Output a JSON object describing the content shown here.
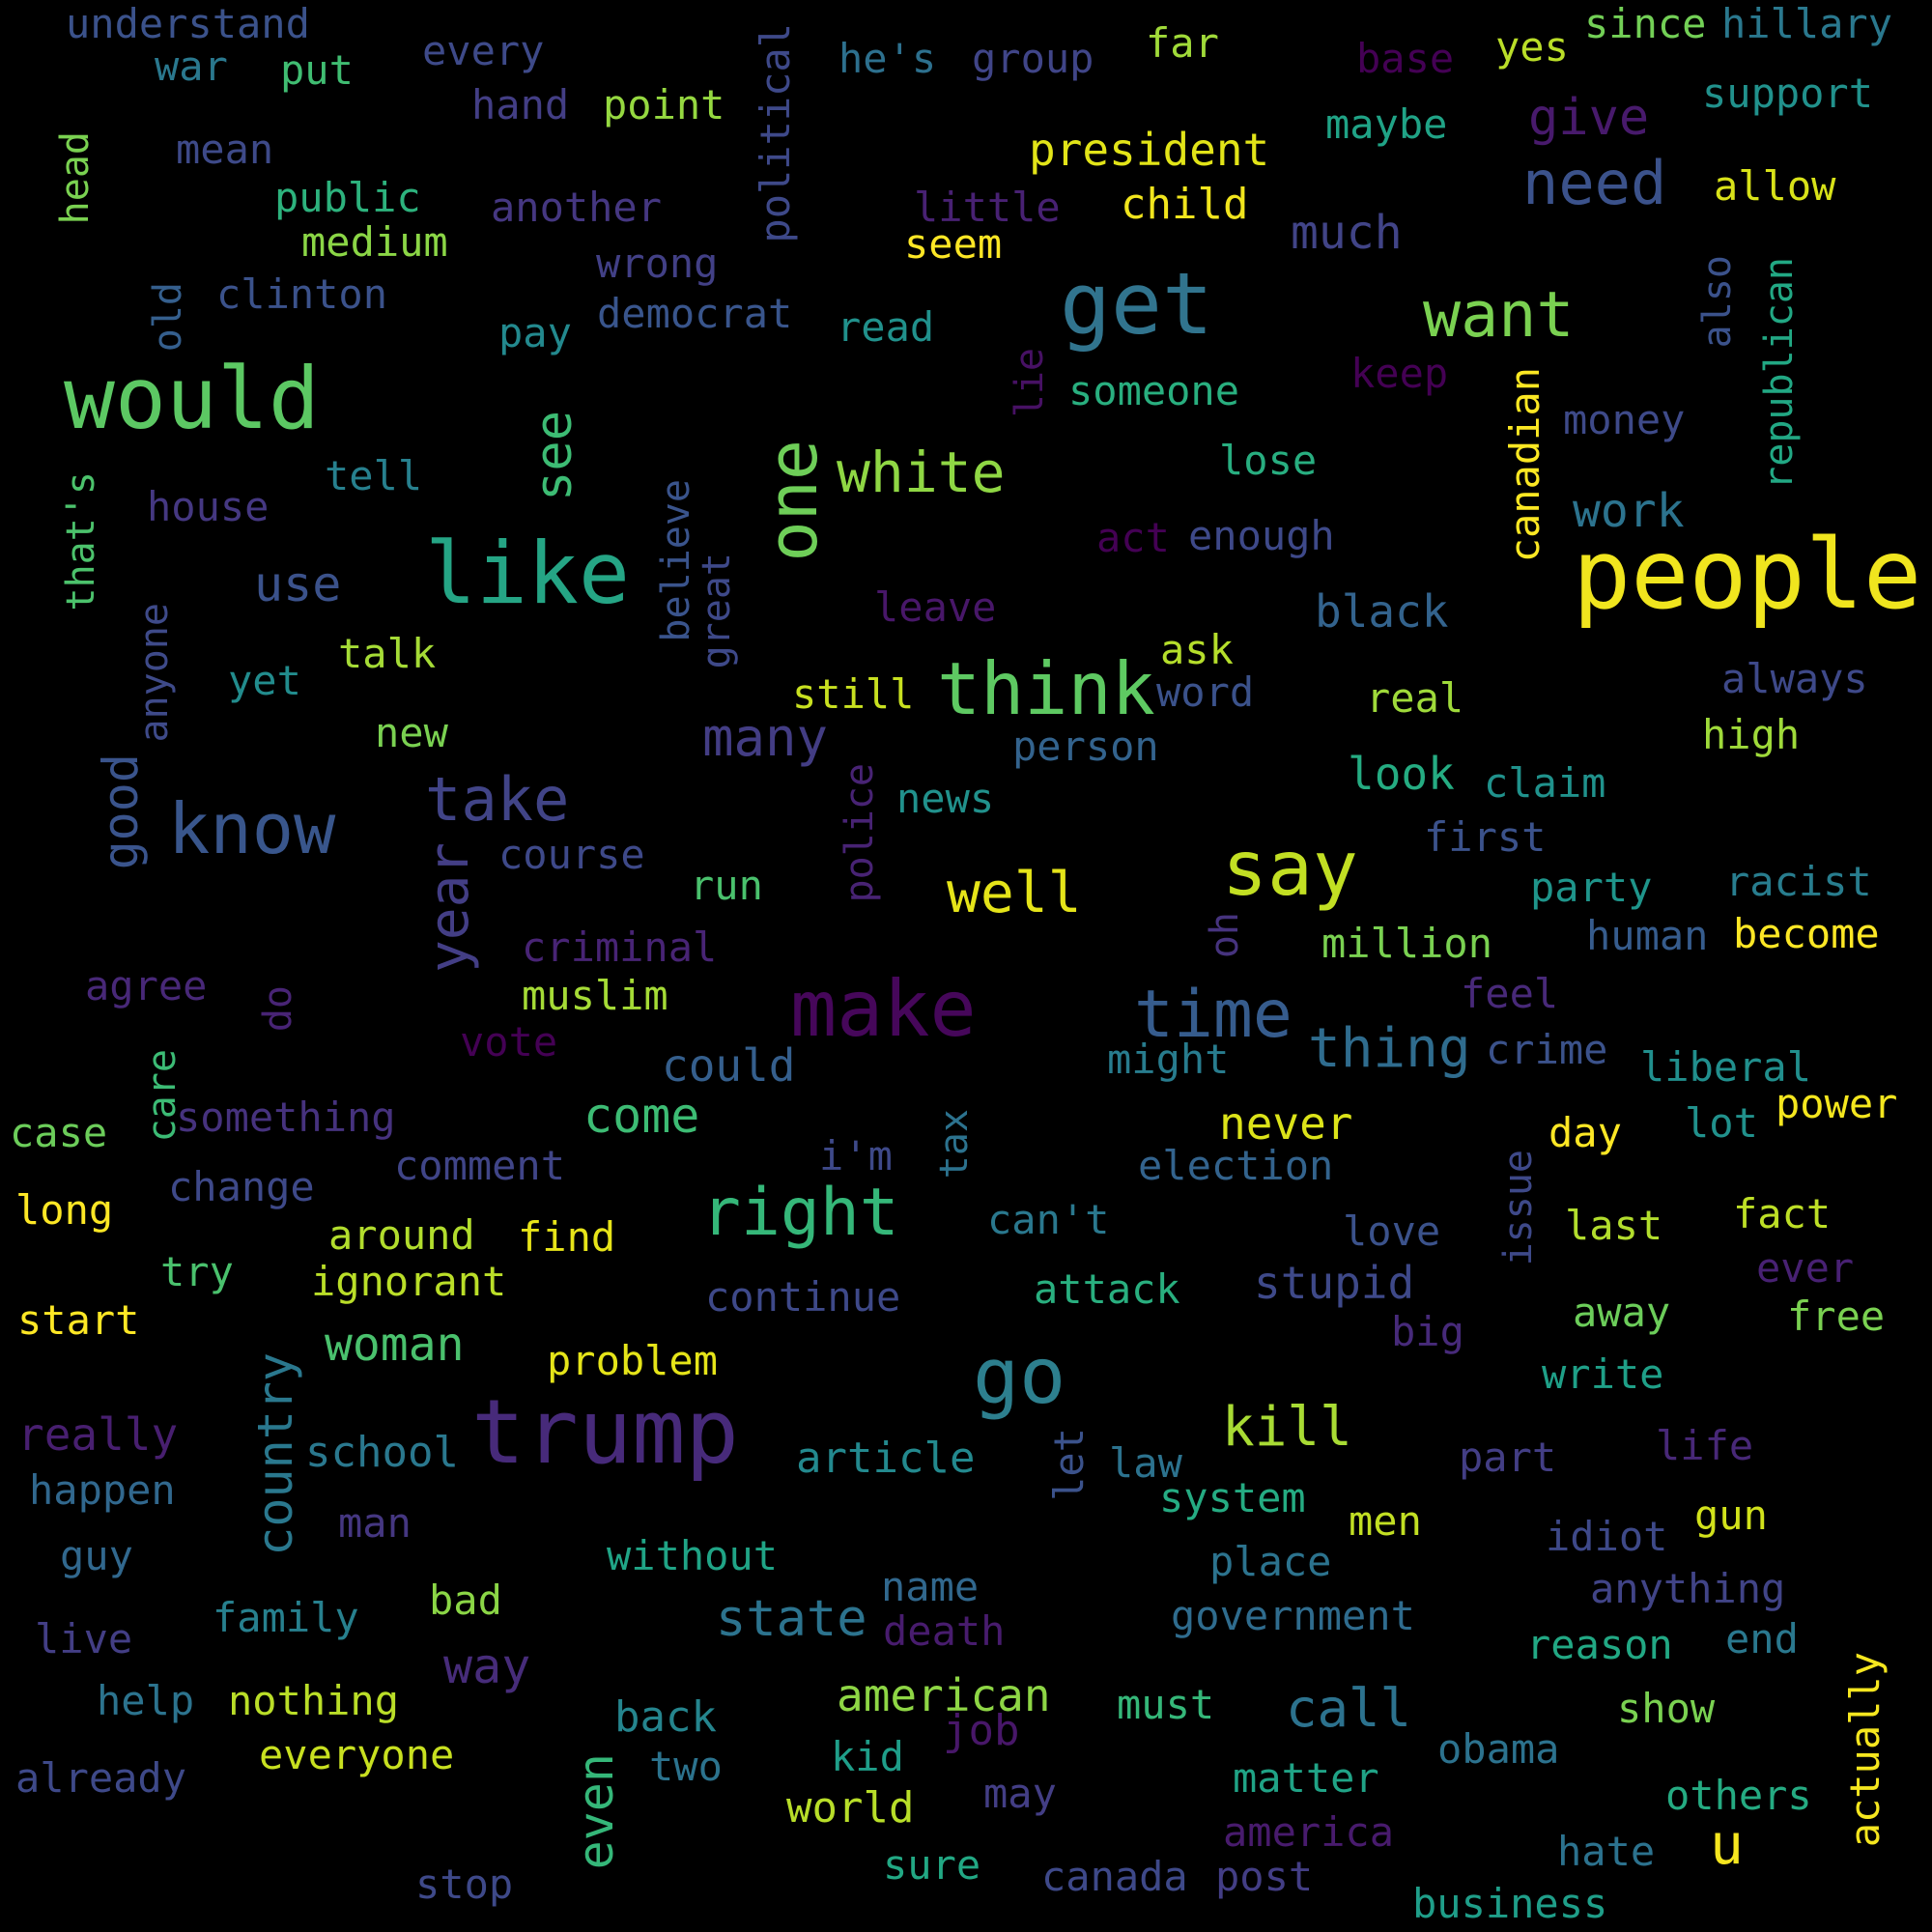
{
  "words": [
    {
      "text": "people",
      "color": "#f0e51e"
    },
    {
      "text": "get",
      "color": "#31748e"
    },
    {
      "text": "would",
      "color": "#5cc863"
    },
    {
      "text": "like",
      "color": "#25a585"
    },
    {
      "text": "one",
      "color": "#6ece58"
    },
    {
      "text": "trump",
      "color": "#472a7a"
    },
    {
      "text": "make",
      "color": "#46075a"
    },
    {
      "text": "think",
      "color": "#5ec962"
    },
    {
      "text": "go",
      "color": "#2d7f8e"
    },
    {
      "text": "say",
      "color": "#c2df23"
    },
    {
      "text": "know",
      "color": "#39568c"
    },
    {
      "text": "want",
      "color": "#7ad151"
    },
    {
      "text": "right",
      "color": "#35b779"
    },
    {
      "text": "time",
      "color": "#365c8d"
    },
    {
      "text": "need",
      "color": "#3b528b"
    },
    {
      "text": "take",
      "color": "#414487"
    },
    {
      "text": "white",
      "color": "#8fd744"
    },
    {
      "text": "well",
      "color": "#e5e419"
    },
    {
      "text": "year",
      "color": "#433e85"
    },
    {
      "text": "see",
      "color": "#3dbc74"
    },
    {
      "text": "good",
      "color": "#3a548c"
    },
    {
      "text": "country",
      "color": "#2a788e"
    },
    {
      "text": "even",
      "color": "#35b779"
    },
    {
      "text": "u",
      "color": "#f5e61f"
    },
    {
      "text": "kill",
      "color": "#a8db34"
    },
    {
      "text": "thing",
      "color": "#2f6c8e"
    },
    {
      "text": "many",
      "color": "#433d84"
    },
    {
      "text": "call",
      "color": "#2c728e"
    },
    {
      "text": "give",
      "color": "#481a6c"
    },
    {
      "text": "state",
      "color": "#2c738e"
    },
    {
      "text": "use",
      "color": "#3b528b"
    },
    {
      "text": "come",
      "color": "#3dbc74"
    },
    {
      "text": "woman",
      "color": "#4ac16d"
    },
    {
      "text": "way",
      "color": "#472c7a"
    },
    {
      "text": "work",
      "color": "#2c738e"
    },
    {
      "text": "much",
      "color": "#414487"
    },
    {
      "text": "american",
      "color": "#8ed645"
    },
    {
      "text": "never",
      "color": "#dce319"
    },
    {
      "text": "president",
      "color": "#e2e418"
    },
    {
      "text": "could",
      "color": "#355f8d"
    },
    {
      "text": "look",
      "color": "#25ac82"
    },
    {
      "text": "black",
      "color": "#33638d"
    },
    {
      "text": "canadian",
      "color": "#fbe723"
    },
    {
      "text": "child",
      "color": "#f1e51d"
    },
    {
      "text": "stupid",
      "color": "#3e4989"
    },
    {
      "text": "understand",
      "color": "#3b528b"
    },
    {
      "text": "hillary",
      "color": "#2a788e"
    },
    {
      "text": "since",
      "color": "#73d056"
    },
    {
      "text": "yes",
      "color": "#bade28"
    },
    {
      "text": "far",
      "color": "#a0da39"
    },
    {
      "text": "base",
      "color": "#440154"
    },
    {
      "text": "group",
      "color": "#404588"
    },
    {
      "text": "he's",
      "color": "#2d708e"
    },
    {
      "text": "every",
      "color": "#3e4a89"
    },
    {
      "text": "war",
      "color": "#2a788e"
    },
    {
      "text": "put",
      "color": "#40bd72"
    },
    {
      "text": "political",
      "color": "#3e4989"
    },
    {
      "text": "point",
      "color": "#95d840"
    },
    {
      "text": "hand",
      "color": "#433e85"
    },
    {
      "text": "support",
      "color": "#21918c"
    },
    {
      "text": "maybe",
      "color": "#20a386"
    },
    {
      "text": "mean",
      "color": "#3e4a89"
    },
    {
      "text": "allow",
      "color": "#d8e219"
    },
    {
      "text": "head",
      "color": "#7ad151"
    },
    {
      "text": "public",
      "color": "#2db27d"
    },
    {
      "text": "another",
      "color": "#453781"
    },
    {
      "text": "little",
      "color": "#482173"
    },
    {
      "text": "medium",
      "color": "#8bd646"
    },
    {
      "text": "seem",
      "color": "#fde725"
    },
    {
      "text": "wrong",
      "color": "#424086"
    },
    {
      "text": "clinton",
      "color": "#3b528b"
    },
    {
      "text": "old",
      "color": "#355f8d"
    },
    {
      "text": "democrat",
      "color": "#39558c"
    },
    {
      "text": "read",
      "color": "#21918c"
    },
    {
      "text": "pay",
      "color": "#23898e"
    },
    {
      "text": "also",
      "color": "#3b528b"
    },
    {
      "text": "republican",
      "color": "#22a884"
    },
    {
      "text": "lie",
      "color": "#471164"
    },
    {
      "text": "someone",
      "color": "#29af7f"
    },
    {
      "text": "keep",
      "color": "#440154"
    },
    {
      "text": "money",
      "color": "#3e4a89"
    },
    {
      "text": "tell",
      "color": "#27808e"
    },
    {
      "text": "lose",
      "color": "#28ae80"
    },
    {
      "text": "that's",
      "color": "#4cc26c"
    },
    {
      "text": "house",
      "color": "#453882"
    },
    {
      "text": "believe",
      "color": "#3a548c"
    },
    {
      "text": "great",
      "color": "#3e4989"
    },
    {
      "text": "act",
      "color": "#440154"
    },
    {
      "text": "enough",
      "color": "#3e4989"
    },
    {
      "text": "leave",
      "color": "#481769"
    },
    {
      "text": "anyone",
      "color": "#3e4a89"
    },
    {
      "text": "talk",
      "color": "#a5db36"
    },
    {
      "text": "ask",
      "color": "#b5de2b"
    },
    {
      "text": "yet",
      "color": "#228c8d"
    },
    {
      "text": "still",
      "color": "#c8e020"
    },
    {
      "text": "word",
      "color": "#3b528b"
    },
    {
      "text": "real",
      "color": "#9fda3a"
    },
    {
      "text": "always",
      "color": "#3e4989"
    },
    {
      "text": "new",
      "color": "#7ad151"
    },
    {
      "text": "high",
      "color": "#9fda3a"
    },
    {
      "text": "person",
      "color": "#33638d"
    },
    {
      "text": "police",
      "color": "#482374"
    },
    {
      "text": "claim",
      "color": "#20928c"
    },
    {
      "text": "news",
      "color": "#21918c"
    },
    {
      "text": "first",
      "color": "#3b528b"
    },
    {
      "text": "course",
      "color": "#3e4989"
    },
    {
      "text": "run",
      "color": "#4ac16d"
    },
    {
      "text": "party",
      "color": "#1f958b"
    },
    {
      "text": "racist",
      "color": "#287d8e"
    },
    {
      "text": "oh",
      "color": "#46337e"
    },
    {
      "text": "million",
      "color": "#7ad151"
    },
    {
      "text": "human",
      "color": "#365c8d"
    },
    {
      "text": "become",
      "color": "#fde725"
    },
    {
      "text": "agree",
      "color": "#482878"
    },
    {
      "text": "criminal",
      "color": "#482475"
    },
    {
      "text": "muslim",
      "color": "#a5db36"
    },
    {
      "text": "feel",
      "color": "#482979"
    },
    {
      "text": "do",
      "color": "#482475"
    },
    {
      "text": "vote",
      "color": "#440154"
    },
    {
      "text": "might",
      "color": "#287c8e"
    },
    {
      "text": "crime",
      "color": "#3b528b"
    },
    {
      "text": "liberal",
      "color": "#218f8d"
    },
    {
      "text": "care",
      "color": "#3cbb75"
    },
    {
      "text": "case",
      "color": "#6ccd5a"
    },
    {
      "text": "something",
      "color": "#46327e"
    },
    {
      "text": "power",
      "color": "#f4e61e"
    },
    {
      "text": "day",
      "color": "#fde725"
    },
    {
      "text": "lot",
      "color": "#21918c"
    },
    {
      "text": "i'm",
      "color": "#3e4989"
    },
    {
      "text": "tax",
      "color": "#2c728e"
    },
    {
      "text": "comment",
      "color": "#404588"
    },
    {
      "text": "election",
      "color": "#33638d"
    },
    {
      "text": "issue",
      "color": "#3e4989"
    },
    {
      "text": "long",
      "color": "#fde725"
    },
    {
      "text": "change",
      "color": "#3e4989"
    },
    {
      "text": "can't",
      "color": "#2a788e"
    },
    {
      "text": "fact",
      "color": "#bddf26"
    },
    {
      "text": "around",
      "color": "#b2dd2d"
    },
    {
      "text": "find",
      "color": "#e7e419"
    },
    {
      "text": "love",
      "color": "#3b528b"
    },
    {
      "text": "last",
      "color": "#b2dd2d"
    },
    {
      "text": "ever",
      "color": "#482173"
    },
    {
      "text": "try",
      "color": "#4ac16d"
    },
    {
      "text": "ignorant",
      "color": "#bade28"
    },
    {
      "text": "continue",
      "color": "#3e4989"
    },
    {
      "text": "attack",
      "color": "#29af7f"
    },
    {
      "text": "start",
      "color": "#fde725"
    },
    {
      "text": "away",
      "color": "#6ccd5a"
    },
    {
      "text": "free",
      "color": "#7ad151"
    },
    {
      "text": "big",
      "color": "#472a7a"
    },
    {
      "text": "problem",
      "color": "#e5e419"
    },
    {
      "text": "write",
      "color": "#1fa088"
    },
    {
      "text": "really",
      "color": "#481f70"
    },
    {
      "text": "school",
      "color": "#2a788e"
    },
    {
      "text": "article",
      "color": "#23898e"
    },
    {
      "text": "let",
      "color": "#3b528b"
    },
    {
      "text": "law",
      "color": "#2c728e"
    },
    {
      "text": "part",
      "color": "#433e85"
    },
    {
      "text": "life",
      "color": "#482878"
    },
    {
      "text": "happen",
      "color": "#31688e"
    },
    {
      "text": "system",
      "color": "#25ab82"
    },
    {
      "text": "man",
      "color": "#453781"
    },
    {
      "text": "men",
      "color": "#c2df23"
    },
    {
      "text": "idiot",
      "color": "#3e4989"
    },
    {
      "text": "gun",
      "color": "#d2e21b"
    },
    {
      "text": "guy",
      "color": "#31688e"
    },
    {
      "text": "without",
      "color": "#20a486"
    },
    {
      "text": "place",
      "color": "#2c738e"
    },
    {
      "text": "name",
      "color": "#31688e"
    },
    {
      "text": "anything",
      "color": "#414487"
    },
    {
      "text": "family",
      "color": "#27808e"
    },
    {
      "text": "bad",
      "color": "#8bd646"
    },
    {
      "text": "death",
      "color": "#481c6e"
    },
    {
      "text": "government",
      "color": "#2f6c8e"
    },
    {
      "text": "live",
      "color": "#433e85"
    },
    {
      "text": "reason",
      "color": "#22a884"
    },
    {
      "text": "end",
      "color": "#2a788e"
    },
    {
      "text": "actually",
      "color": "#f5e61f"
    },
    {
      "text": "help",
      "color": "#2c738e"
    },
    {
      "text": "nothing",
      "color": "#bade28"
    },
    {
      "text": "must",
      "color": "#35b779"
    },
    {
      "text": "show",
      "color": "#7ad151"
    },
    {
      "text": "back",
      "color": "#25858e"
    },
    {
      "text": "job",
      "color": "#481769"
    },
    {
      "text": "kid",
      "color": "#1f9e89"
    },
    {
      "text": "obama",
      "color": "#2c728e"
    },
    {
      "text": "everyone",
      "color": "#c8e020"
    },
    {
      "text": "two",
      "color": "#2c738e"
    },
    {
      "text": "already",
      "color": "#3e4989"
    },
    {
      "text": "may",
      "color": "#433e85"
    },
    {
      "text": "matter",
      "color": "#20a386"
    },
    {
      "text": "others",
      "color": "#25ab82"
    },
    {
      "text": "world",
      "color": "#b8de29"
    },
    {
      "text": "america",
      "color": "#481b6d"
    },
    {
      "text": "hate",
      "color": "#2c728e"
    },
    {
      "text": "sure",
      "color": "#22a884"
    },
    {
      "text": "stop",
      "color": "#3e4989"
    },
    {
      "text": "canada",
      "color": "#3e4989"
    },
    {
      "text": "post",
      "color": "#433e85"
    },
    {
      "text": "business",
      "color": "#1f9e89"
    }
  ]
}
